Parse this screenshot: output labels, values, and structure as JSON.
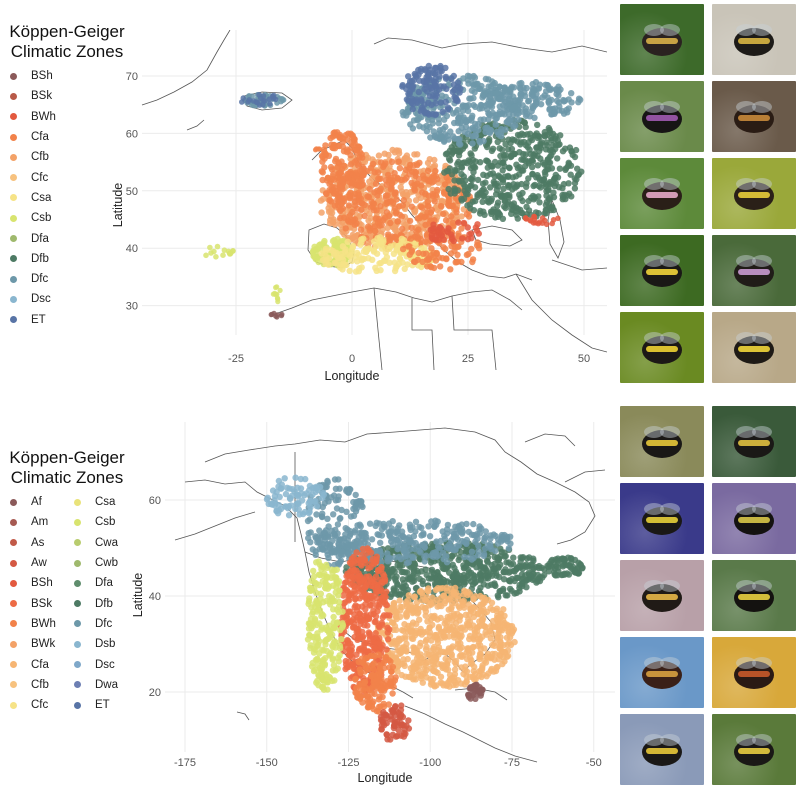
{
  "europe": {
    "legend": {
      "title_line1": "Köppen-Geiger",
      "title_line2": "Climatic Zones",
      "items": [
        {
          "label": "BSh",
          "color": "#8b5a5a"
        },
        {
          "label": "BSk",
          "color": "#b85a48"
        },
        {
          "label": "BWh",
          "color": "#e3593f"
        },
        {
          "label": "Cfa",
          "color": "#f2824a"
        },
        {
          "label": "Cfb",
          "color": "#f3a268"
        },
        {
          "label": "Cfc",
          "color": "#f7c27f"
        },
        {
          "label": "Csa",
          "color": "#f6e387"
        },
        {
          "label": "Csb",
          "color": "#d8e46f"
        },
        {
          "label": "Dfa",
          "color": "#9fb96d"
        },
        {
          "label": "Dfb",
          "color": "#4d7a64"
        },
        {
          "label": "Dfc",
          "color": "#6d98a9"
        },
        {
          "label": "Dsc",
          "color": "#8ab6cf"
        },
        {
          "label": "ET",
          "color": "#5874a6"
        }
      ]
    },
    "axes": {
      "xlabel": "Longitude",
      "ylabel": "Latitude",
      "xticks": [
        "-25",
        "0",
        "25",
        "50"
      ],
      "yticks": [
        "30",
        "40",
        "50",
        "60",
        "70"
      ]
    }
  },
  "north_america": {
    "legend": {
      "title_line1": "Köppen-Geiger",
      "title_line2": "Climatic Zones",
      "items_col1": [
        {
          "label": "Af",
          "color": "#8b5a5a"
        },
        {
          "label": "Am",
          "color": "#a65a52"
        },
        {
          "label": "As",
          "color": "#c15a48"
        },
        {
          "label": "Aw",
          "color": "#d45843"
        },
        {
          "label": "BSh",
          "color": "#e3593f"
        },
        {
          "label": "BSk",
          "color": "#ed6b45"
        },
        {
          "label": "BWh",
          "color": "#f2824a"
        },
        {
          "label": "BWk",
          "color": "#f3a268"
        },
        {
          "label": "Cfa",
          "color": "#f6b573"
        },
        {
          "label": "Cfb",
          "color": "#f7c27f"
        },
        {
          "label": "Cfc",
          "color": "#f6e387"
        }
      ],
      "items_col2": [
        {
          "label": "Csa",
          "color": "#e9e37a"
        },
        {
          "label": "Csb",
          "color": "#d8e46f"
        },
        {
          "label": "Cwa",
          "color": "#b8cc6e"
        },
        {
          "label": "Cwb",
          "color": "#9fb96d"
        },
        {
          "label": "Dfa",
          "color": "#5f8d6d"
        },
        {
          "label": "Dfb",
          "color": "#4d7a64"
        },
        {
          "label": "Dfc",
          "color": "#6d98a9"
        },
        {
          "label": "Dsb",
          "color": "#8ab6cf"
        },
        {
          "label": "Dsc",
          "color": "#7fa8c9"
        },
        {
          "label": "Dwa",
          "color": "#6d7fb3"
        },
        {
          "label": "ET",
          "color": "#5874a6"
        }
      ]
    },
    "axes": {
      "xlabel": "Longitude",
      "ylabel": "Latitude",
      "xticks": [
        "-175",
        "-150",
        "-125",
        "-100",
        "-75",
        "-50"
      ],
      "yticks": [
        "20",
        "40",
        "60"
      ]
    }
  },
  "photos_europe": [
    {
      "name": "bumblebee-photo-eu-1",
      "bg": "#3d6a2a",
      "bee": "#2a2220",
      "band": "#d8b048"
    },
    {
      "name": "bumblebee-photo-eu-2",
      "bg": "#c9c4b8",
      "bee": "#1d1b18",
      "band": "#d9b643"
    },
    {
      "name": "bumblebee-photo-eu-3",
      "bg": "#6a8a4a",
      "bee": "#171515",
      "band": "#a05ab0"
    },
    {
      "name": "bumblebee-photo-eu-4",
      "bg": "#6a5a4a",
      "bee": "#2a1c14",
      "band": "#c88a3a"
    },
    {
      "name": "bumblebee-photo-eu-5",
      "bg": "#5d8a3a",
      "bee": "#2a1f18",
      "band": "#e6a8c8"
    },
    {
      "name": "bumblebee-photo-eu-6",
      "bg": "#9aa83a",
      "bee": "#2a2018",
      "band": "#e8cc3a"
    },
    {
      "name": "bumblebee-photo-eu-7",
      "bg": "#3d6a22",
      "bee": "#1a1816",
      "band": "#f2d43a"
    },
    {
      "name": "bumblebee-photo-eu-8",
      "bg": "#4a6a3a",
      "bee": "#201c18",
      "band": "#c89ad0"
    },
    {
      "name": "bumblebee-photo-eu-9",
      "bg": "#6a8a22",
      "bee": "#1c1816",
      "band": "#f0d232"
    },
    {
      "name": "bumblebee-photo-eu-10",
      "bg": "#b8a888",
      "bee": "#1e1a16",
      "band": "#f0d63a"
    }
  ],
  "photos_na": [
    {
      "name": "bumblebee-photo-na-1",
      "bg": "#8a8a5a",
      "bee": "#1a1816",
      "band": "#e8c838"
    },
    {
      "name": "bumblebee-photo-na-2",
      "bg": "#3a5a3a",
      "bee": "#1a1816",
      "band": "#e0c040"
    },
    {
      "name": "bumblebee-photo-na-3",
      "bg": "#3a3a8a",
      "bee": "#1a1816",
      "band": "#e8d038"
    },
    {
      "name": "bumblebee-photo-na-4",
      "bg": "#7a6aa0",
      "bee": "#141210",
      "band": "#d8c848"
    },
    {
      "name": "bumblebee-photo-na-5",
      "bg": "#b8a0a8",
      "bee": "#201a16",
      "band": "#e8b848"
    },
    {
      "name": "bumblebee-photo-na-6",
      "bg": "#5a7a4a",
      "bee": "#141210",
      "band": "#e8d040"
    },
    {
      "name": "bumblebee-photo-na-7",
      "bg": "#6a98c8",
      "bee": "#3a2018",
      "band": "#d8a040"
    },
    {
      "name": "bumblebee-photo-na-8",
      "bg": "#d8a83a",
      "bee": "#2a1a14",
      "band": "#c85a2a"
    },
    {
      "name": "bumblebee-photo-na-9",
      "bg": "#8a9ab8",
      "bee": "#1a1816",
      "band": "#e8c838"
    },
    {
      "name": "bumblebee-photo-na-10",
      "bg": "#5a7a3a",
      "bee": "#1a1816",
      "band": "#e8cc40"
    }
  ]
}
